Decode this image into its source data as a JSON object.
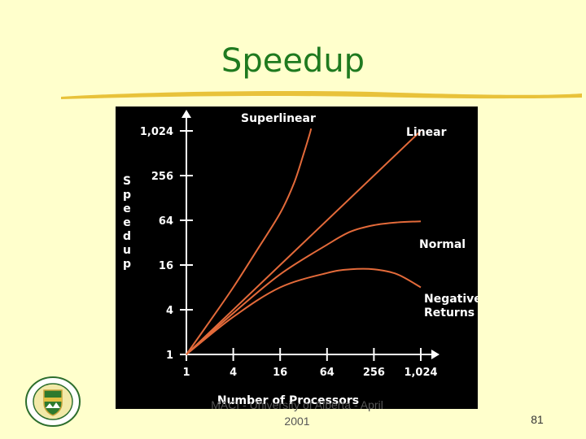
{
  "slide": {
    "title": "Speedup",
    "footer_source": "MACI - University of Alberta - April 2001",
    "page_number": "81"
  },
  "colors": {
    "background": "#ffffcc",
    "title": "#1f7a1f",
    "rule": "#e8c23a",
    "chart_bg": "#000000",
    "axis": "#ffffff",
    "curve": "#e36a3a"
  },
  "icons": {
    "logo": "university-crest-icon"
  },
  "chart_data": {
    "type": "line",
    "xlabel": "Number of Processors",
    "ylabel": "Speedup",
    "x_scale": "log2",
    "y_scale": "log2",
    "xlim": [
      1,
      1024
    ],
    "ylim": [
      1,
      1024
    ],
    "x_ticks": [
      1,
      4,
      16,
      64,
      256,
      1024
    ],
    "x_tick_labels": [
      "1",
      "4",
      "16",
      "64",
      "256",
      "1,024"
    ],
    "y_ticks": [
      1,
      4,
      16,
      64,
      256,
      1024
    ],
    "y_tick_labels": [
      "1",
      "4",
      "16",
      "64",
      "256",
      "1,024"
    ],
    "series": [
      {
        "name": "Superlinear",
        "points": [
          [
            1,
            1
          ],
          [
            2,
            2.8
          ],
          [
            4,
            8
          ],
          [
            8,
            25
          ],
          [
            16,
            80
          ],
          [
            24,
            200
          ],
          [
            32,
            500
          ],
          [
            38,
            900
          ],
          [
            40,
            1100
          ]
        ]
      },
      {
        "name": "Linear",
        "points": [
          [
            1,
            1
          ],
          [
            1024,
            1024
          ]
        ]
      },
      {
        "name": "Normal",
        "points": [
          [
            1,
            1
          ],
          [
            4,
            3.6
          ],
          [
            16,
            12
          ],
          [
            64,
            30
          ],
          [
            128,
            45
          ],
          [
            256,
            55
          ],
          [
            512,
            60
          ],
          [
            1024,
            62
          ]
        ]
      },
      {
        "name": "Negative Returns",
        "points": [
          [
            1,
            1
          ],
          [
            4,
            3.2
          ],
          [
            16,
            8
          ],
          [
            64,
            12.5
          ],
          [
            128,
            14
          ],
          [
            256,
            14
          ],
          [
            512,
            12
          ],
          [
            1024,
            8
          ]
        ]
      }
    ],
    "series_labels": [
      "Superlinear",
      "Linear",
      "Normal",
      "Negative",
      "Returns"
    ]
  }
}
